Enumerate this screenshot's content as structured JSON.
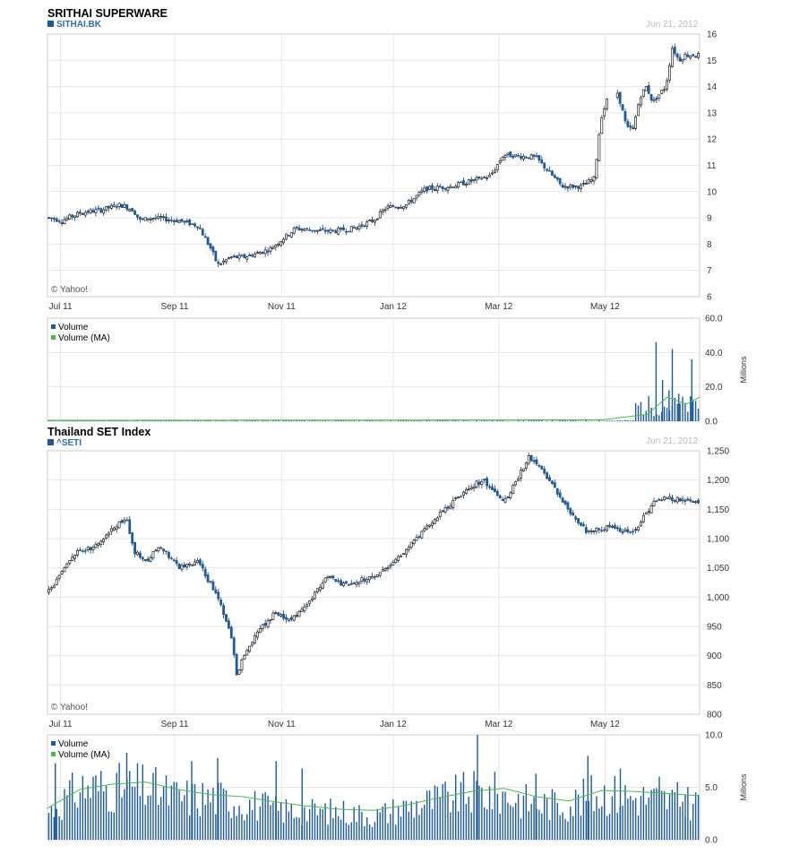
{
  "colors": {
    "accent": "#1e5a96",
    "ma": "#4db848",
    "grid": "#e6e6e6",
    "axis": "#cccccc",
    "label": "#333333",
    "date": "#bbbbbb"
  },
  "chart_data": [
    {
      "type": "candlestick",
      "title": "SRITHAI SUPERWARE",
      "ticker": "SITHAI.BK",
      "date_label": "Jun 21, 2012",
      "watermark": "© Yahoo!",
      "x_ticks": [
        "Jul 11",
        "Sep 11",
        "Nov 11",
        "Jan 12",
        "Mar 12",
        "May 12"
      ],
      "y_ticks": [
        "6",
        "7",
        "8",
        "9",
        "10",
        "11",
        "12",
        "13",
        "14",
        "15",
        "16"
      ],
      "ylim": [
        6,
        16
      ],
      "grid": true,
      "price_path": {
        "t": [
          0,
          0.02,
          0.05,
          0.08,
          0.11,
          0.13,
          0.14,
          0.16,
          0.2,
          0.23,
          0.25,
          0.26,
          0.28,
          0.3,
          0.34,
          0.38,
          0.42,
          0.44,
          0.47,
          0.5,
          0.52,
          0.55,
          0.58,
          0.62,
          0.68,
          0.7,
          0.75,
          0.79,
          0.82,
          0.84,
          0.85,
          0.87,
          0.88,
          0.89,
          0.9,
          0.91,
          0.92,
          0.93,
          0.95,
          0.96,
          0.97,
          0.98,
          1.0
        ],
        "v": [
          9.0,
          8.9,
          9.2,
          9.3,
          9.5,
          9.3,
          8.9,
          9.0,
          8.9,
          8.7,
          7.8,
          7.2,
          7.5,
          7.5,
          7.8,
          8.6,
          8.5,
          8.5,
          8.6,
          8.9,
          9.4,
          9.5,
          10.1,
          10.2,
          10.6,
          11.4,
          11.3,
          10.2,
          10.2,
          10.5,
          12.8,
          14.2,
          13.4,
          12.4,
          12.4,
          13.6,
          14.0,
          13.4,
          14.0,
          15.5,
          15.0,
          15.2,
          15.2
        ]
      },
      "gaps": [
        [
          0.86,
          0.875
        ]
      ]
    },
    {
      "type": "bar",
      "legend": [
        "Volume",
        "Volume (MA)"
      ],
      "y_ticks": [
        "0.0",
        "20.0",
        "40.0",
        "60.0"
      ],
      "ylim": [
        0,
        60
      ],
      "unit": "Millions",
      "spikes": [
        [
          0.935,
          46
        ],
        [
          0.96,
          42
        ],
        [
          0.99,
          36
        ],
        [
          0.945,
          24
        ],
        [
          0.97,
          16
        ],
        [
          0.955,
          18
        ]
      ],
      "ma_path": {
        "t": [
          0,
          0.85,
          0.92,
          0.95,
          0.98,
          1.0
        ],
        "v": [
          0.5,
          0.8,
          4,
          14,
          10,
          14
        ]
      }
    },
    {
      "type": "candlestick",
      "title": "Thailand SET Index",
      "ticker": "^SETI",
      "date_label": "Jun 21, 2012",
      "watermark": "© Yahoo!",
      "x_ticks": [
        "Jul 11",
        "Sep 11",
        "Nov 11",
        "Jan 12",
        "Mar 12",
        "May 12"
      ],
      "y_ticks": [
        "800",
        "850",
        "900",
        "950",
        "1,000",
        "1,050",
        "1,100",
        "1,150",
        "1,200",
        "1,250"
      ],
      "ylim": [
        800,
        1250
      ],
      "grid": true,
      "price_path": {
        "t": [
          0,
          0.02,
          0.04,
          0.07,
          0.1,
          0.12,
          0.13,
          0.15,
          0.17,
          0.2,
          0.23,
          0.26,
          0.28,
          0.29,
          0.3,
          0.32,
          0.35,
          0.37,
          0.4,
          0.43,
          0.45,
          0.48,
          0.5,
          0.53,
          0.55,
          0.6,
          0.65,
          0.67,
          0.7,
          0.72,
          0.74,
          0.77,
          0.8,
          0.83,
          0.86,
          0.9,
          0.93,
          0.95,
          0.98,
          1.0
        ],
        "v": [
          1010,
          1040,
          1075,
          1085,
          1120,
          1135,
          1080,
          1060,
          1090,
          1050,
          1060,
          1000,
          940,
          860,
          900,
          940,
          975,
          960,
          990,
          1040,
          1020,
          1030,
          1035,
          1060,
          1080,
          1140,
          1190,
          1200,
          1160,
          1200,
          1240,
          1200,
          1150,
          1110,
          1120,
          1110,
          1160,
          1170,
          1165,
          1160
        ]
      }
    },
    {
      "type": "bar",
      "legend": [
        "Volume",
        "Volume (MA)"
      ],
      "y_ticks": [
        "0.0",
        "5.0",
        "10.0"
      ],
      "ylim": [
        0,
        10
      ],
      "unit": "Millions",
      "vol_path": {
        "t": [
          0,
          0.05,
          0.1,
          0.15,
          0.2,
          0.25,
          0.3,
          0.35,
          0.4,
          0.45,
          0.5,
          0.55,
          0.6,
          0.65,
          0.7,
          0.75,
          0.8,
          0.85,
          0.9,
          0.95,
          1.0
        ],
        "v": [
          3,
          5.5,
          5.5,
          5.5,
          4.5,
          4.5,
          4,
          3.2,
          3,
          3,
          2.5,
          3.5,
          4.2,
          5,
          4.8,
          3.8,
          3.8,
          5,
          4.5,
          4.2,
          4
        ]
      },
      "spikes": [
        [
          0.66,
          10
        ],
        [
          0.01,
          7.3
        ],
        [
          0.12,
          8.3
        ],
        [
          0.22,
          7.5
        ],
        [
          0.26,
          7.8
        ],
        [
          0.35,
          7.5
        ],
        [
          0.39,
          6.8
        ],
        [
          0.75,
          6.3
        ],
        [
          0.94,
          6
        ],
        [
          0.83,
          8
        ],
        [
          0.88,
          6.8
        ],
        [
          0.98,
          4.3
        ]
      ],
      "ma_path": {
        "t": [
          0,
          0.05,
          0.1,
          0.15,
          0.2,
          0.25,
          0.3,
          0.35,
          0.4,
          0.45,
          0.5,
          0.55,
          0.6,
          0.65,
          0.7,
          0.75,
          0.8,
          0.85,
          0.9,
          0.95,
          1.0
        ],
        "v": [
          3,
          4.8,
          5.3,
          5.5,
          4.8,
          4.3,
          4.1,
          3.6,
          3.2,
          2.9,
          2.8,
          3.3,
          4.0,
          4.6,
          4.9,
          4.1,
          3.7,
          4.7,
          4.6,
          4.4,
          4.2
        ]
      }
    }
  ]
}
